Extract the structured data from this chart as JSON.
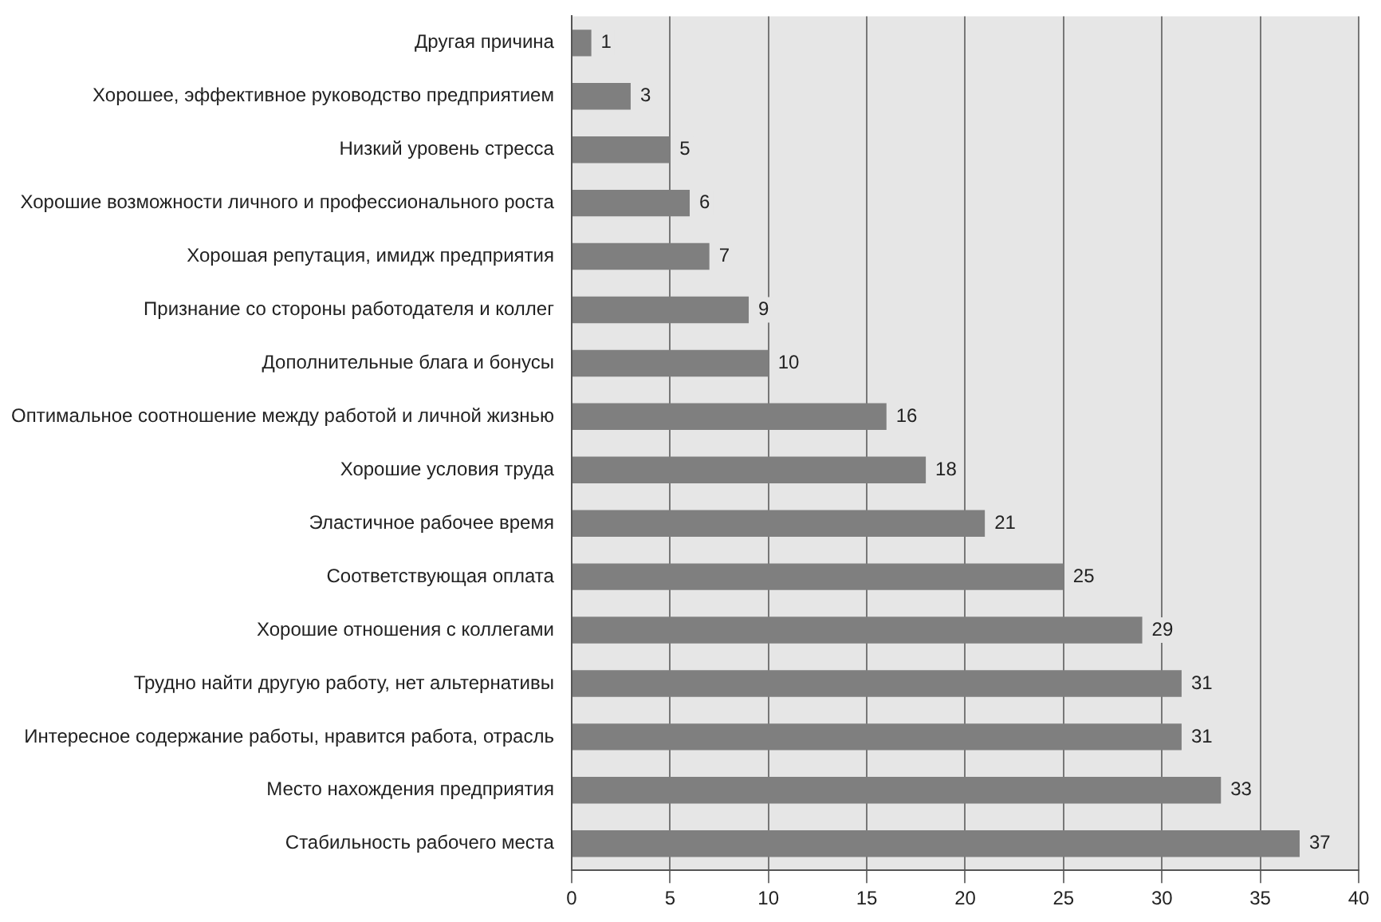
{
  "chart_data": {
    "type": "bar",
    "orientation": "horizontal",
    "categories": [
      "Другая причина",
      "Хорошее, эффективное руководство предприятием",
      "Низкий уровень стресса",
      "Хорошие возможности личного и профессионального роста",
      "Хорошая репутация, имидж предприятия",
      "Признание со стороны работодателя и коллег",
      "Дополнительные блага и бонусы",
      "Оптимальное соотношение между работой и личной жизнью",
      "Хорошие условия труда",
      "Эластичное рабочее время",
      "Соответствующая оплата",
      "Хорошие отношения с коллегами",
      "Трудно найти другую работу, нет альтернативы",
      "Интересное содержание работы, нравится работа, отрасль",
      "Место нахождения предприятия",
      "Стабильность рабочего места"
    ],
    "values": [
      1,
      3,
      5,
      6,
      7,
      9,
      10,
      16,
      18,
      21,
      25,
      29,
      31,
      31,
      33,
      37
    ],
    "color": "#7f7f7f",
    "xlim": [
      0,
      40
    ],
    "xticks": [
      0,
      5,
      10,
      15,
      20,
      25,
      30,
      35,
      40
    ],
    "grid": "x",
    "data_labels": true
  }
}
